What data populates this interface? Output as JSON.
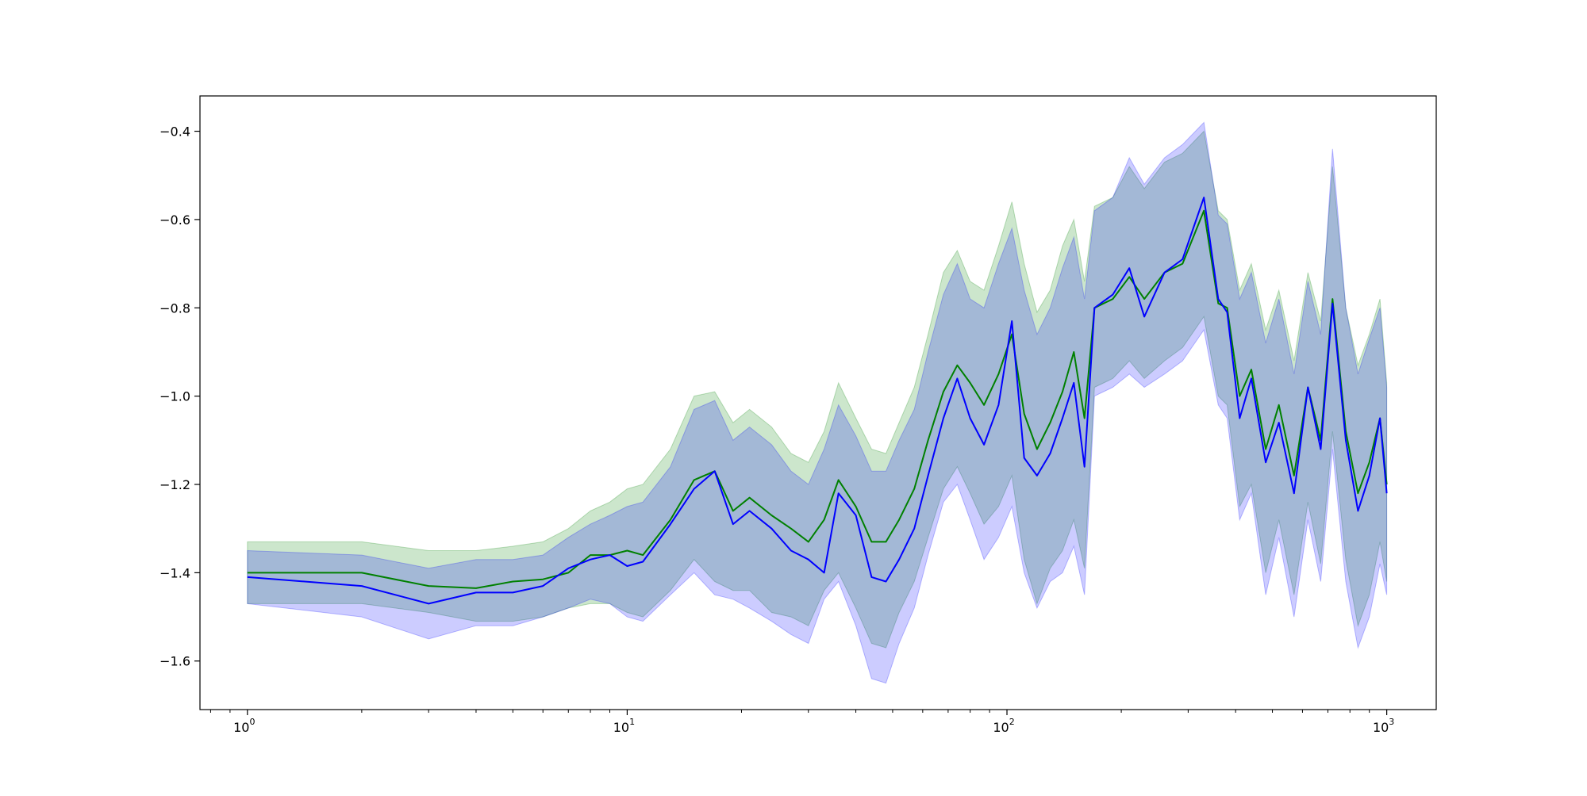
{
  "chart_data": {
    "type": "line",
    "title": "",
    "xlabel": "",
    "ylabel": "",
    "xscale": "log",
    "xlim": [
      0.75,
      1350
    ],
    "ylim": [
      -1.71,
      -0.32
    ],
    "grid": false,
    "legend": "none",
    "xticks": [
      {
        "value": 1,
        "base": "10",
        "exp": "0"
      },
      {
        "value": 10,
        "base": "10",
        "exp": "1"
      },
      {
        "value": 100,
        "base": "10",
        "exp": "2"
      },
      {
        "value": 1000,
        "base": "10",
        "exp": "3"
      }
    ],
    "yticks": [
      {
        "value": -0.4,
        "label": "−0.4"
      },
      {
        "value": -0.6,
        "label": "−0.6"
      },
      {
        "value": -0.8,
        "label": "−0.8"
      },
      {
        "value": -1.0,
        "label": "−1.0"
      },
      {
        "value": -1.2,
        "label": "−1.2"
      },
      {
        "value": -1.4,
        "label": "−1.4"
      },
      {
        "value": -1.6,
        "label": "−1.6"
      }
    ],
    "series": [
      {
        "color": "#008000",
        "band_color": "#008000",
        "band_opacity": 0.2,
        "x": [
          1,
          2,
          3,
          4,
          5,
          6,
          7,
          8,
          9,
          10,
          11,
          13,
          15,
          17,
          19,
          21,
          24,
          27,
          30,
          33,
          36,
          40,
          44,
          48,
          52,
          57,
          62,
          68,
          74,
          80,
          87,
          95,
          103,
          111,
          120,
          130,
          140,
          150,
          160,
          170,
          190,
          210,
          230,
          260,
          290,
          330,
          360,
          380,
          410,
          440,
          480,
          520,
          570,
          620,
          670,
          720,
          780,
          840,
          900,
          960,
          1000
        ],
        "y": [
          -1.4,
          -1.4,
          -1.43,
          -1.435,
          -1.42,
          -1.415,
          -1.4,
          -1.36,
          -1.36,
          -1.35,
          -1.36,
          -1.28,
          -1.19,
          -1.17,
          -1.26,
          -1.23,
          -1.27,
          -1.3,
          -1.33,
          -1.28,
          -1.19,
          -1.25,
          -1.33,
          -1.33,
          -1.28,
          -1.21,
          -1.1,
          -0.99,
          -0.93,
          -0.97,
          -1.02,
          -0.95,
          -0.86,
          -1.04,
          -1.12,
          -1.06,
          -0.99,
          -0.9,
          -1.05,
          -0.8,
          -0.78,
          -0.73,
          -0.78,
          -0.72,
          -0.7,
          -0.58,
          -0.79,
          -0.8,
          -1.0,
          -0.94,
          -1.12,
          -1.02,
          -1.18,
          -0.98,
          -1.1,
          -0.78,
          -1.08,
          -1.22,
          -1.15,
          -1.05,
          -1.2
        ],
        "lower": [
          -1.47,
          -1.47,
          -1.49,
          -1.51,
          -1.51,
          -1.5,
          -1.48,
          -1.47,
          -1.47,
          -1.49,
          -1.5,
          -1.44,
          -1.37,
          -1.42,
          -1.44,
          -1.44,
          -1.49,
          -1.5,
          -1.52,
          -1.44,
          -1.4,
          -1.48,
          -1.56,
          -1.57,
          -1.49,
          -1.42,
          -1.32,
          -1.21,
          -1.16,
          -1.22,
          -1.29,
          -1.25,
          -1.18,
          -1.37,
          -1.47,
          -1.39,
          -1.35,
          -1.28,
          -1.39,
          -0.98,
          -0.96,
          -0.92,
          -0.96,
          -0.92,
          -0.89,
          -0.82,
          -1.0,
          -1.02,
          -1.25,
          -1.2,
          -1.4,
          -1.28,
          -1.45,
          -1.24,
          -1.38,
          -1.08,
          -1.37,
          -1.52,
          -1.45,
          -1.33,
          -1.42
        ],
        "upper": [
          -1.33,
          -1.33,
          -1.35,
          -1.35,
          -1.34,
          -1.33,
          -1.3,
          -1.26,
          -1.24,
          -1.21,
          -1.2,
          -1.12,
          -1.0,
          -0.99,
          -1.06,
          -1.03,
          -1.07,
          -1.13,
          -1.15,
          -1.08,
          -0.97,
          -1.05,
          -1.12,
          -1.13,
          -1.06,
          -0.98,
          -0.86,
          -0.72,
          -0.67,
          -0.74,
          -0.76,
          -0.66,
          -0.56,
          -0.7,
          -0.81,
          -0.76,
          -0.66,
          -0.6,
          -0.74,
          -0.57,
          -0.55,
          -0.48,
          -0.53,
          -0.47,
          -0.45,
          -0.4,
          -0.58,
          -0.6,
          -0.76,
          -0.7,
          -0.85,
          -0.76,
          -0.92,
          -0.72,
          -0.83,
          -0.48,
          -0.8,
          -0.93,
          -0.86,
          -0.78,
          -0.97
        ]
      },
      {
        "color": "#0000ff",
        "band_color": "#0000ff",
        "band_opacity": 0.2,
        "x": [
          1,
          2,
          3,
          4,
          5,
          6,
          7,
          8,
          9,
          10,
          11,
          13,
          15,
          17,
          19,
          21,
          24,
          27,
          30,
          33,
          36,
          40,
          44,
          48,
          52,
          57,
          62,
          68,
          74,
          80,
          87,
          95,
          103,
          111,
          120,
          130,
          140,
          150,
          160,
          170,
          190,
          210,
          230,
          260,
          290,
          330,
          360,
          380,
          410,
          440,
          480,
          520,
          570,
          620,
          670,
          720,
          780,
          840,
          900,
          960,
          1000
        ],
        "y": [
          -1.41,
          -1.43,
          -1.47,
          -1.445,
          -1.445,
          -1.43,
          -1.39,
          -1.37,
          -1.36,
          -1.385,
          -1.375,
          -1.29,
          -1.21,
          -1.17,
          -1.29,
          -1.26,
          -1.3,
          -1.35,
          -1.37,
          -1.4,
          -1.22,
          -1.27,
          -1.41,
          -1.42,
          -1.37,
          -1.3,
          -1.18,
          -1.05,
          -0.96,
          -1.05,
          -1.11,
          -1.02,
          -0.83,
          -1.14,
          -1.18,
          -1.13,
          -1.05,
          -0.97,
          -1.16,
          -0.8,
          -0.77,
          -0.71,
          -0.82,
          -0.72,
          -0.69,
          -0.55,
          -0.78,
          -0.81,
          -1.05,
          -0.96,
          -1.15,
          -1.06,
          -1.22,
          -0.98,
          -1.12,
          -0.79,
          -1.1,
          -1.26,
          -1.18,
          -1.05,
          -1.22
        ],
        "lower": [
          -1.47,
          -1.5,
          -1.55,
          -1.52,
          -1.52,
          -1.5,
          -1.48,
          -1.46,
          -1.47,
          -1.5,
          -1.51,
          -1.45,
          -1.4,
          -1.45,
          -1.46,
          -1.48,
          -1.51,
          -1.54,
          -1.56,
          -1.46,
          -1.42,
          -1.52,
          -1.64,
          -1.65,
          -1.56,
          -1.48,
          -1.36,
          -1.24,
          -1.2,
          -1.28,
          -1.37,
          -1.32,
          -1.25,
          -1.4,
          -1.48,
          -1.42,
          -1.4,
          -1.34,
          -1.45,
          -1.0,
          -0.98,
          -0.95,
          -0.98,
          -0.95,
          -0.92,
          -0.85,
          -1.02,
          -1.05,
          -1.28,
          -1.22,
          -1.45,
          -1.32,
          -1.5,
          -1.28,
          -1.42,
          -1.12,
          -1.42,
          -1.57,
          -1.5,
          -1.38,
          -1.45
        ],
        "upper": [
          -1.35,
          -1.36,
          -1.39,
          -1.37,
          -1.37,
          -1.36,
          -1.32,
          -1.29,
          -1.27,
          -1.25,
          -1.24,
          -1.16,
          -1.03,
          -1.01,
          -1.1,
          -1.07,
          -1.11,
          -1.17,
          -1.2,
          -1.12,
          -1.02,
          -1.09,
          -1.17,
          -1.17,
          -1.1,
          -1.03,
          -0.9,
          -0.77,
          -0.7,
          -0.78,
          -0.8,
          -0.7,
          -0.62,
          -0.76,
          -0.86,
          -0.8,
          -0.71,
          -0.64,
          -0.78,
          -0.58,
          -0.55,
          -0.46,
          -0.52,
          -0.46,
          -0.43,
          -0.38,
          -0.59,
          -0.61,
          -0.78,
          -0.72,
          -0.88,
          -0.78,
          -0.95,
          -0.74,
          -0.86,
          -0.44,
          -0.8,
          -0.95,
          -0.87,
          -0.8,
          -0.98
        ]
      }
    ]
  }
}
